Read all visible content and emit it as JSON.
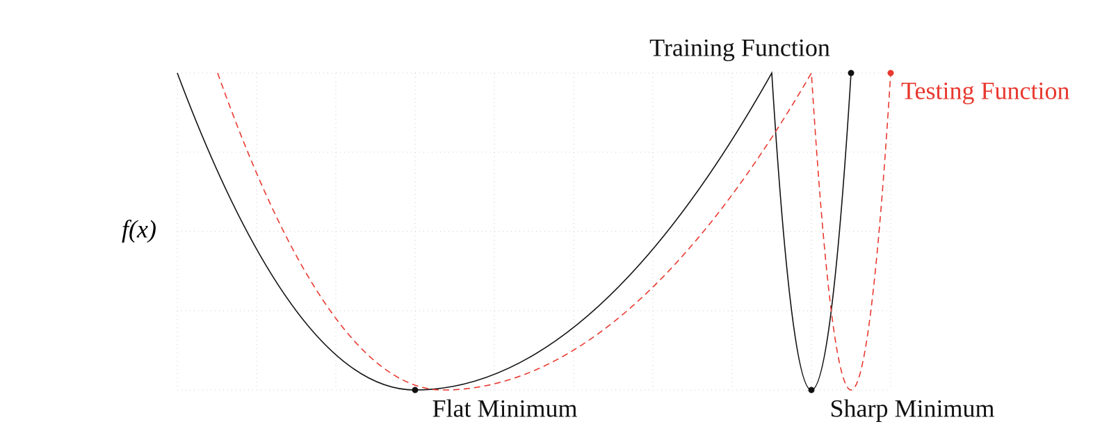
{
  "y_axis_label": "f(x)",
  "curves": {
    "training": "Training Function",
    "testing": "Testing Function"
  },
  "annotations": {
    "flat": "Flat Minimum",
    "sharp": "Sharp Minimum"
  }
}
